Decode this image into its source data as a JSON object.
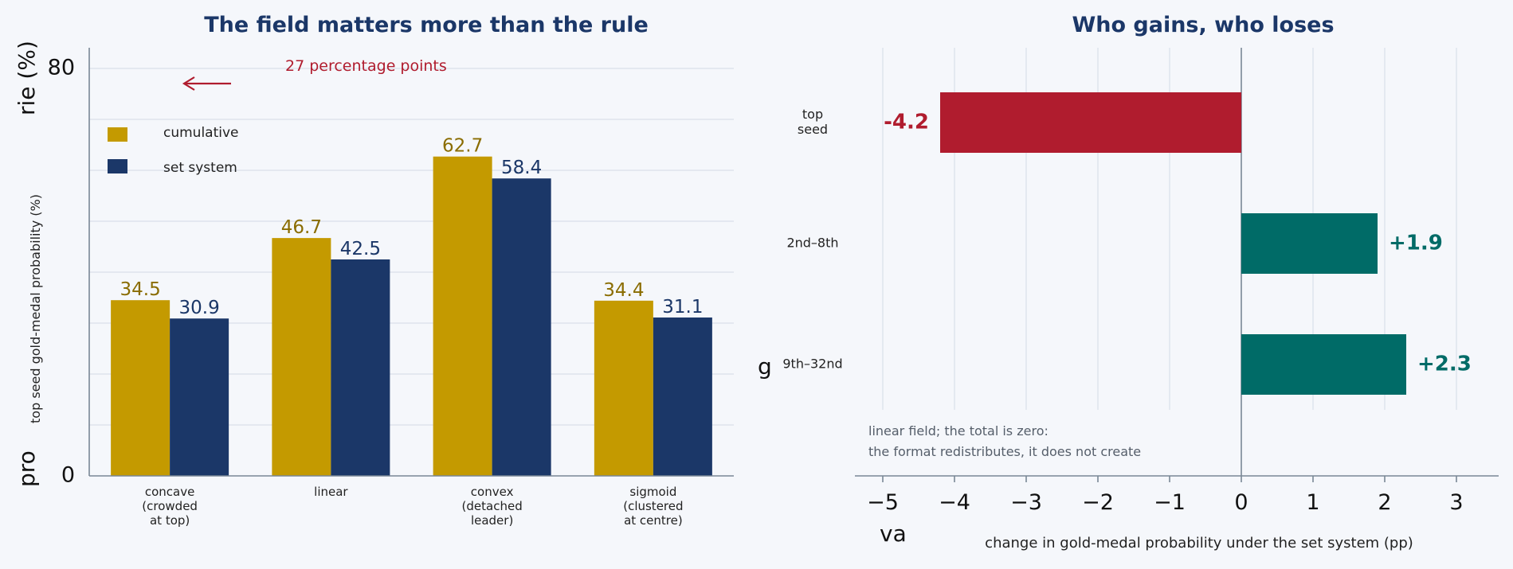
{
  "colors": {
    "cumulative": "#c49a00",
    "set_system": "#1b3768",
    "loss": "#b01c2e",
    "gain": "#006b67",
    "title": "#1b3768",
    "cumulative_label": "#8a6c00"
  },
  "chart_data": [
    {
      "type": "bar",
      "title": "The field matters more than the rule",
      "ylabel": "top seed gold-medal probability (%)",
      "ylim": [
        0,
        80
      ],
      "yticks": [
        0,
        80
      ],
      "categories": [
        [
          "concave",
          "(crowded",
          "at top)"
        ],
        [
          "linear"
        ],
        [
          "convex",
          "(detached",
          "leader)"
        ],
        [
          "sigmoid",
          "(clustered",
          "at centre)"
        ]
      ],
      "series": [
        {
          "name": "cumulative",
          "values": [
            34.5,
            46.7,
            62.7,
            34.4
          ]
        },
        {
          "name": "set system",
          "values": [
            30.9,
            42.5,
            58.4,
            31.1
          ]
        }
      ],
      "legend_position": "upper-left",
      "annotation": "27 percentage points",
      "grid": true,
      "partial_labels": {
        "y_axis_fragment_top": "rie (%)",
        "y_axis_fragment_bottom": "pro"
      }
    },
    {
      "type": "bar",
      "orientation": "horizontal",
      "title": "Who gains, who loses",
      "xlabel": "change in gold-medal probability under the set system (pp)",
      "xlim": [
        -5,
        3
      ],
      "xticks": [
        -5,
        -4,
        -3,
        -2,
        -1,
        0,
        1,
        2,
        3
      ],
      "xtick_labels": [
        "−5",
        "−4",
        "−3",
        "−2",
        "−1",
        "0",
        "1",
        "2",
        "3"
      ],
      "categories": [
        [
          "top",
          "seed"
        ],
        [
          "2nd–8th"
        ],
        [
          "9th–32nd"
        ]
      ],
      "values": [
        -4.2,
        1.9,
        2.3
      ],
      "value_labels": [
        "-4.2",
        "+1.9",
        "+2.3"
      ],
      "note": [
        "linear field; the total is zero:",
        "the format redistributes, it does not create"
      ],
      "grid": true,
      "partial_labels": {
        "x_axis_fragment": "va",
        "y_axis_fragment": "g"
      }
    }
  ]
}
